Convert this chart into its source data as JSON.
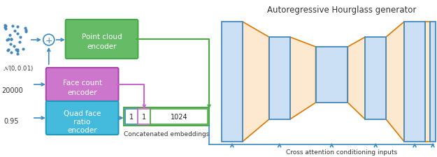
{
  "title": "Autoregressive Hourglass generator",
  "subtitle": "Cross attention conditioning inputs",
  "concat_label": "Concatenated embeddings",
  "bg_color": "#ffffff",
  "blue": "#3a8bbf",
  "green": "#4aaa44",
  "purple": "#cc66cc",
  "pc_box_fill": "#66bb66",
  "pc_box_edge": "#44aa44",
  "fc_box_fill": "#cc77cc",
  "fc_box_edge": "#aa44aa",
  "qf_box_fill": "#44bbdd",
  "qf_box_edge": "#2299bb",
  "hg_blue_fill": "#cce0f5",
  "hg_blue_edge": "#4488bb",
  "hg_orange_fill": "#fde8d0",
  "hg_orange_edge": "#dd7700",
  "dot_color": "#4488bb",
  "text_color": "#333333",
  "white_text": "#ffffff"
}
